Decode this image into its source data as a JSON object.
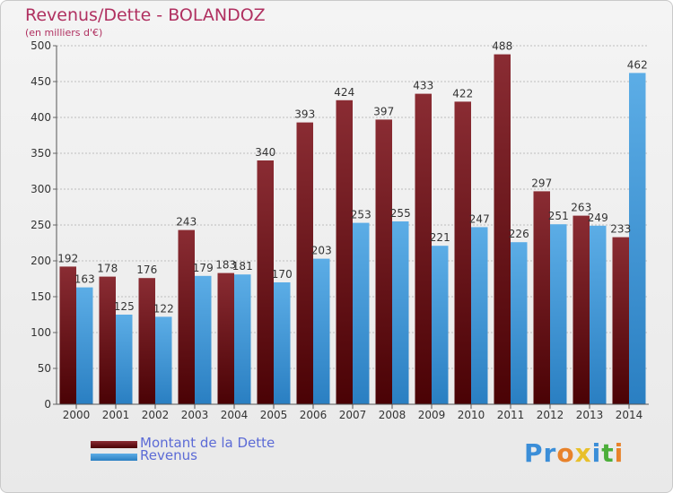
{
  "header": {
    "title": "Revenus/Dette - BOLANDOZ",
    "subtitle": "(en milliers d'€)"
  },
  "colors": {
    "dette_top": "#8a2c33",
    "dette_bottom": "#4a0205",
    "revenus_top": "#5cade6",
    "revenus_bottom": "#2a7fc2",
    "axis_text": "#333333",
    "grid": "#bdbdbd"
  },
  "legend": {
    "dette_label": "Montant de la Dette",
    "revenus_label": "Revenus"
  },
  "logo": {
    "letters": [
      "P",
      "r",
      "o",
      "x",
      "i",
      "t",
      "i"
    ],
    "colors": [
      "#3b8ed8",
      "#3b8ed8",
      "#e8822a",
      "#e8c02a",
      "#3b8ed8",
      "#4cae3a",
      "#e8822a"
    ]
  },
  "chart_data": {
    "type": "bar",
    "categories": [
      "2000",
      "2001",
      "2002",
      "2003",
      "2004",
      "2005",
      "2006",
      "2007",
      "2008",
      "2009",
      "2010",
      "2011",
      "2012",
      "2013",
      "2014"
    ],
    "series": [
      {
        "name": "Montant de la Dette",
        "values": [
          192,
          178,
          176,
          243,
          183,
          340,
          393,
          424,
          397,
          433,
          422,
          488,
          297,
          263,
          233
        ]
      },
      {
        "name": "Revenus",
        "values": [
          163,
          125,
          122,
          179,
          181,
          170,
          203,
          253,
          255,
          221,
          247,
          226,
          251,
          249,
          462
        ]
      }
    ],
    "ylim": [
      0,
      500
    ],
    "yticks": [
      0,
      50,
      100,
      150,
      200,
      250,
      300,
      350,
      400,
      450,
      500
    ],
    "grid": true,
    "legend_position": "bottom-left"
  }
}
